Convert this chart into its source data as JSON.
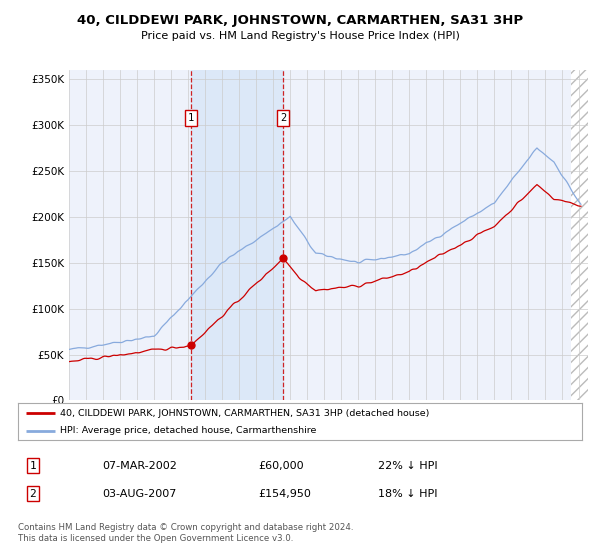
{
  "title": "40, CILDDEWI PARK, JOHNSTOWN, CARMARTHEN, SA31 3HP",
  "subtitle": "Price paid vs. HM Land Registry's House Price Index (HPI)",
  "legend_label_red": "40, CILDDEWI PARK, JOHNSTOWN, CARMARTHEN, SA31 3HP (detached house)",
  "legend_label_blue": "HPI: Average price, detached house, Carmarthenshire",
  "sale1_label": "1",
  "sale1_date": "07-MAR-2002",
  "sale1_price": "£60,000",
  "sale1_hpi": "22% ↓ HPI",
  "sale2_label": "2",
  "sale2_date": "03-AUG-2007",
  "sale2_price": "£154,950",
  "sale2_hpi": "18% ↓ HPI",
  "footnote": "Contains HM Land Registry data © Crown copyright and database right 2024.\nThis data is licensed under the Open Government Licence v3.0.",
  "background_color": "#ffffff",
  "plot_bg_color": "#eef2fb",
  "grid_color": "#cccccc",
  "red_color": "#cc0000",
  "blue_color": "#88aadd",
  "shade_color": "#dce8f8",
  "sale1_year": 2002.17,
  "sale1_value": 60000,
  "sale2_year": 2007.58,
  "sale2_value": 154950,
  "ylim_min": 0,
  "ylim_max": 360000,
  "xlim_min": 1995,
  "xlim_max": 2025.5
}
